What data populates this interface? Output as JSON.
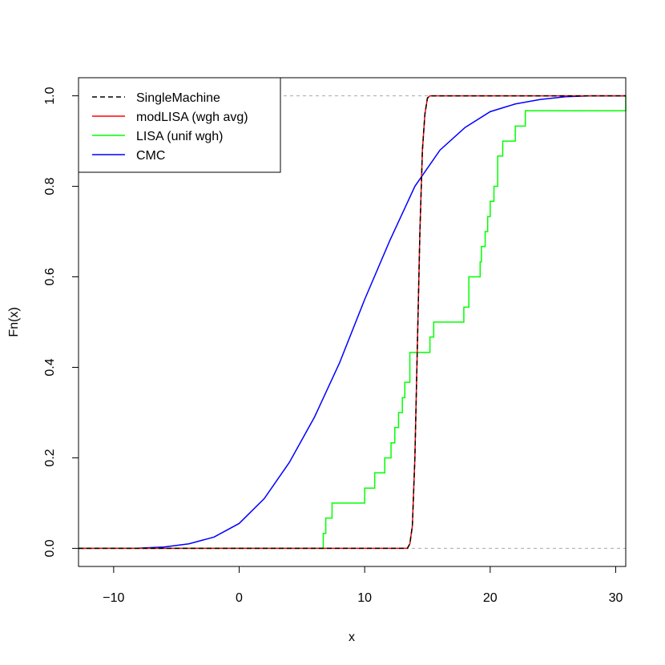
{
  "chart_data": {
    "type": "line",
    "title": "",
    "xlabel": "x",
    "ylabel": "Fn(x)",
    "xlim": [
      -12.8,
      30.8
    ],
    "ylim": [
      -0.04,
      1.04
    ],
    "x_ticks": [
      -10,
      0,
      10,
      20,
      30
    ],
    "y_ticks": [
      0.0,
      0.2,
      0.4,
      0.6,
      0.8,
      1.0
    ],
    "x_tick_labels": [
      "−10",
      "0",
      "10",
      "20",
      "30"
    ],
    "y_tick_labels": [
      "0.0",
      "0.2",
      "0.4",
      "0.6",
      "0.8",
      "1.0"
    ],
    "reference_lines": [
      0,
      1
    ],
    "reference_line_color": "#a8a8a8",
    "legend_position": "top-left",
    "grid": false,
    "series": [
      {
        "name": "SingleMachine",
        "color": "#000000",
        "dashed": true,
        "step": false,
        "x": [
          -12.8,
          13.4,
          13.6,
          13.8,
          14.0,
          14.2,
          14.4,
          14.6,
          14.8,
          15.0,
          15.2,
          30.8
        ],
        "y": [
          0,
          0,
          0.01,
          0.05,
          0.2,
          0.45,
          0.7,
          0.88,
          0.96,
          0.995,
          1,
          1
        ]
      },
      {
        "name": "modLISA (wgh avg)",
        "color": "#ff0000",
        "dashed": false,
        "step": false,
        "x": [
          -12.8,
          13.4,
          13.6,
          13.8,
          14.0,
          14.2,
          14.4,
          14.6,
          14.8,
          15.0,
          15.2,
          30.8
        ],
        "y": [
          0,
          0,
          0.01,
          0.05,
          0.2,
          0.45,
          0.7,
          0.88,
          0.96,
          0.995,
          1,
          1
        ]
      },
      {
        "name": "LISA (unif wgh)",
        "color": "#00ff00",
        "dashed": false,
        "step": true,
        "x": [
          -12.8,
          0.4,
          6.7,
          6.9,
          7.4,
          9.5,
          10.0,
          10.8,
          11.6,
          12.1,
          12.4,
          12.7,
          13.0,
          13.2,
          13.6,
          15.2,
          15.5,
          17.9,
          18.3,
          19.2,
          19.3,
          19.6,
          19.8,
          20.0,
          20.3,
          20.6,
          21.0,
          22.0,
          22.8,
          30.8
        ],
        "y": [
          0,
          0.033,
          0.067,
          0.1,
          0.1,
          0.133,
          0.167,
          0.2,
          0.233,
          0.267,
          0.3,
          0.333,
          0.367,
          0.433,
          0.467,
          0.5,
          0.533,
          0.6,
          0.633,
          0.667,
          0.7,
          0.733,
          0.767,
          0.8,
          0.867,
          0.9,
          0.933,
          0.967,
          1.0,
          1.0
        ],
        "y_start": 0
      },
      {
        "name": "CMC",
        "color": "#0000ff",
        "dashed": false,
        "step": false,
        "x": [
          -12.8,
          -8,
          -6,
          -4,
          -2,
          0,
          2,
          4,
          6,
          8,
          10,
          12,
          14,
          16,
          18,
          20,
          22,
          24,
          26,
          28,
          30.8
        ],
        "y": [
          0,
          0.0005,
          0.003,
          0.01,
          0.025,
          0.055,
          0.11,
          0.19,
          0.29,
          0.41,
          0.55,
          0.68,
          0.8,
          0.88,
          0.93,
          0.965,
          0.982,
          0.992,
          0.998,
          1.0,
          1.0
        ]
      }
    ]
  }
}
